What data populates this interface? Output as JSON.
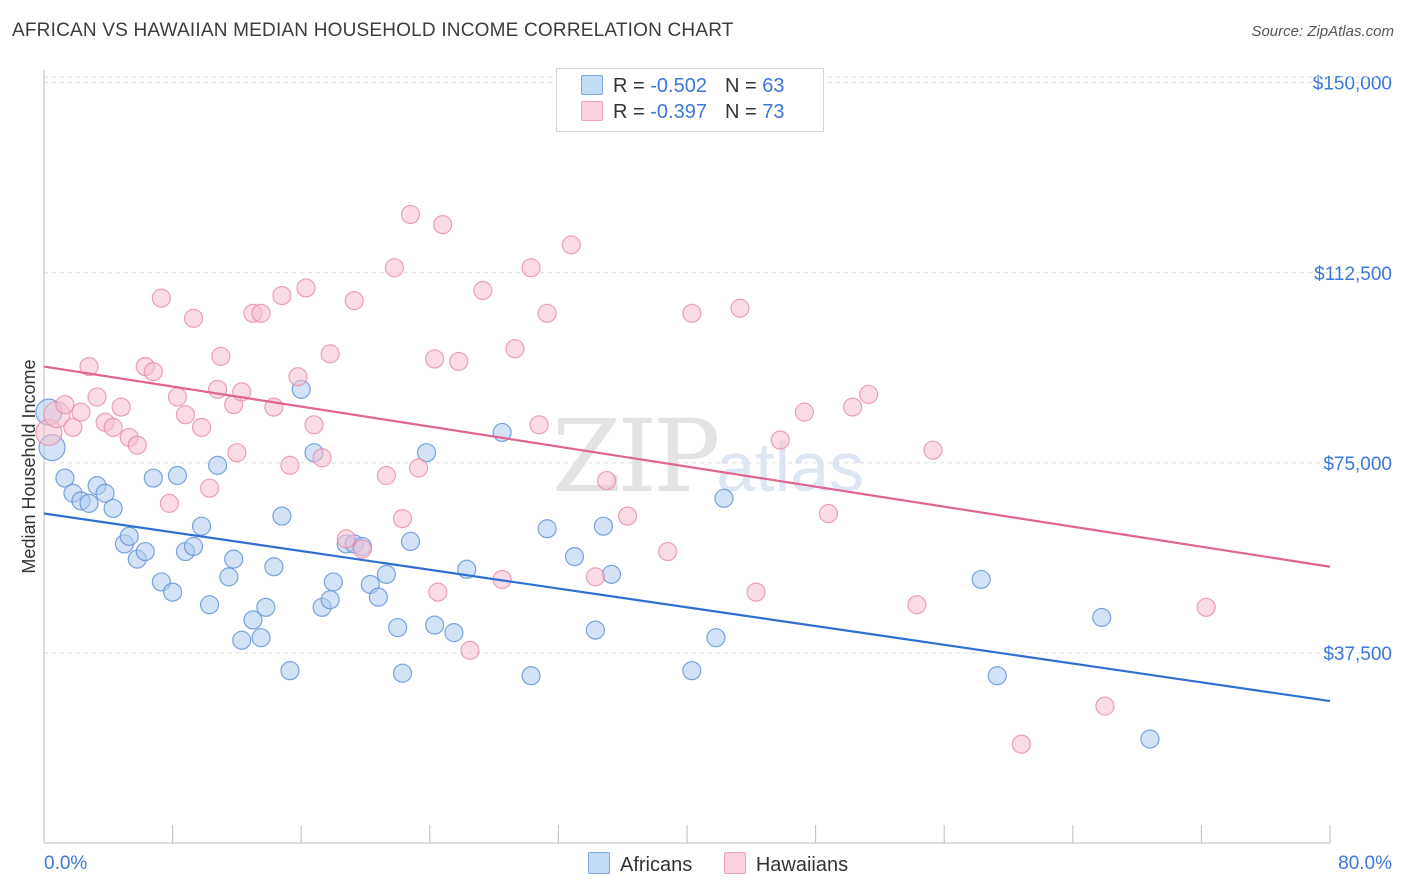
{
  "title": "AFRICAN VS HAWAIIAN MEDIAN HOUSEHOLD INCOME CORRELATION CHART",
  "source": "Source: ZipAtlas.com",
  "watermark": {
    "zip": "ZIP",
    "atlas": "atlas"
  },
  "legend": {
    "africans": {
      "r_label": "R = ",
      "r_value": "-0.502",
      "n_label": "N = ",
      "n_value": "63"
    },
    "hawaiians": {
      "r_label": "R = ",
      "r_value": "-0.397",
      "n_label": "N = ",
      "n_value": "73"
    }
  },
  "colors": {
    "africans_fill": "#aecbf0",
    "africans_stroke": "#5b8fd6",
    "africans_line": "#2e6fd1",
    "hawaiians_fill": "#f7c0d0",
    "hawaiians_stroke": "#e98aa8",
    "hawaiians_line": "#e0648f",
    "axis_label": "#3b78d8"
  },
  "chart_data": {
    "type": "scatter",
    "title": "AFRICAN VS HAWAIIAN MEDIAN HOUSEHOLD INCOME CORRELATION CHART",
    "xlabel": "",
    "ylabel": "Median Household Income",
    "xlim": [
      0,
      80
    ],
    "ylim": [
      0,
      152500
    ],
    "x_tick_labels": [
      "0.0%",
      "80.0%"
    ],
    "y_ticks": [
      37500,
      75000,
      112500,
      150000
    ],
    "y_tick_labels": [
      "$37,500",
      "$75,000",
      "$112,500",
      "$150,000"
    ],
    "grid": true,
    "series": [
      {
        "name": "Africans",
        "trend": [
          [
            0,
            65000
          ],
          [
            80,
            28000
          ]
        ],
        "points": [
          [
            0.3,
            85000
          ],
          [
            0.5,
            78000
          ],
          [
            1.3,
            72000
          ],
          [
            1.8,
            69000
          ],
          [
            2.3,
            67500
          ],
          [
            2.8,
            67000
          ],
          [
            3.3,
            70500
          ],
          [
            3.8,
            69000
          ],
          [
            4.3,
            66000
          ],
          [
            5.0,
            59000
          ],
          [
            5.3,
            60500
          ],
          [
            5.8,
            56000
          ],
          [
            6.3,
            57500
          ],
          [
            6.8,
            72000
          ],
          [
            7.3,
            51500
          ],
          [
            8.0,
            49500
          ],
          [
            8.3,
            72500
          ],
          [
            8.8,
            57500
          ],
          [
            9.3,
            58500
          ],
          [
            9.8,
            62500
          ],
          [
            10.3,
            47000
          ],
          [
            10.8,
            74500
          ],
          [
            11.5,
            52500
          ],
          [
            11.8,
            56000
          ],
          [
            12.3,
            40000
          ],
          [
            13.0,
            44000
          ],
          [
            13.5,
            40500
          ],
          [
            13.8,
            46500
          ],
          [
            14.3,
            54500
          ],
          [
            14.8,
            64500
          ],
          [
            15.3,
            34000
          ],
          [
            16.0,
            89500
          ],
          [
            16.8,
            77000
          ],
          [
            17.3,
            46500
          ],
          [
            17.8,
            48000
          ],
          [
            18.0,
            51500
          ],
          [
            18.8,
            59000
          ],
          [
            19.3,
            59000
          ],
          [
            19.8,
            58500
          ],
          [
            20.3,
            51000
          ],
          [
            20.8,
            48500
          ],
          [
            21.3,
            53000
          ],
          [
            22.0,
            42500
          ],
          [
            22.3,
            33500
          ],
          [
            22.8,
            59500
          ],
          [
            23.8,
            77000
          ],
          [
            24.3,
            43000
          ],
          [
            25.5,
            41500
          ],
          [
            26.3,
            54000
          ],
          [
            28.5,
            81000
          ],
          [
            30.3,
            33000
          ],
          [
            31.3,
            62000
          ],
          [
            33.0,
            56500
          ],
          [
            34.3,
            42000
          ],
          [
            34.8,
            62500
          ],
          [
            35.3,
            53000
          ],
          [
            40.3,
            34000
          ],
          [
            41.8,
            40500
          ],
          [
            42.3,
            68000
          ],
          [
            58.3,
            52000
          ],
          [
            59.3,
            33000
          ],
          [
            65.8,
            44500
          ],
          [
            68.8,
            20500
          ]
        ]
      },
      {
        "name": "Hawaiians",
        "trend": [
          [
            0,
            94000
          ],
          [
            80,
            54500
          ]
        ],
        "points": [
          [
            0.3,
            81000
          ],
          [
            0.8,
            84500
          ],
          [
            1.3,
            86500
          ],
          [
            1.8,
            82000
          ],
          [
            2.3,
            85000
          ],
          [
            2.8,
            94000
          ],
          [
            3.3,
            88000
          ],
          [
            3.8,
            83000
          ],
          [
            4.3,
            82000
          ],
          [
            4.8,
            86000
          ],
          [
            5.3,
            80000
          ],
          [
            5.8,
            78500
          ],
          [
            6.3,
            94000
          ],
          [
            6.8,
            93000
          ],
          [
            7.3,
            107500
          ],
          [
            7.8,
            67000
          ],
          [
            8.3,
            88000
          ],
          [
            8.8,
            84500
          ],
          [
            9.3,
            103500
          ],
          [
            9.8,
            82000
          ],
          [
            10.3,
            70000
          ],
          [
            10.8,
            89500
          ],
          [
            11.0,
            96000
          ],
          [
            11.8,
            86500
          ],
          [
            12.0,
            77000
          ],
          [
            12.3,
            89000
          ],
          [
            13.0,
            104500
          ],
          [
            13.5,
            104500
          ],
          [
            14.3,
            86000
          ],
          [
            14.8,
            108000
          ],
          [
            15.3,
            74500
          ],
          [
            15.8,
            92000
          ],
          [
            16.3,
            109500
          ],
          [
            16.8,
            82500
          ],
          [
            17.3,
            76000
          ],
          [
            17.8,
            96500
          ],
          [
            18.8,
            60000
          ],
          [
            19.3,
            107000
          ],
          [
            19.8,
            58000
          ],
          [
            21.3,
            72500
          ],
          [
            21.8,
            113500
          ],
          [
            22.3,
            64000
          ],
          [
            22.8,
            124000
          ],
          [
            23.3,
            74000
          ],
          [
            24.3,
            95500
          ],
          [
            24.5,
            49500
          ],
          [
            24.8,
            122000
          ],
          [
            25.8,
            95000
          ],
          [
            26.5,
            38000
          ],
          [
            27.3,
            109000
          ],
          [
            28.5,
            52000
          ],
          [
            29.3,
            97500
          ],
          [
            30.3,
            113500
          ],
          [
            30.8,
            82500
          ],
          [
            31.3,
            104500
          ],
          [
            32.8,
            118000
          ],
          [
            34.3,
            52500
          ],
          [
            35.0,
            71500
          ],
          [
            36.3,
            64500
          ],
          [
            38.8,
            57500
          ],
          [
            40.3,
            104500
          ],
          [
            43.3,
            105500
          ],
          [
            44.3,
            49500
          ],
          [
            45.8,
            79500
          ],
          [
            47.3,
            85000
          ],
          [
            48.8,
            65000
          ],
          [
            50.3,
            86000
          ],
          [
            51.3,
            88500
          ],
          [
            54.3,
            47000
          ],
          [
            55.3,
            77500
          ],
          [
            60.8,
            19500
          ],
          [
            66.0,
            27000
          ],
          [
            72.3,
            46500
          ]
        ]
      }
    ]
  }
}
